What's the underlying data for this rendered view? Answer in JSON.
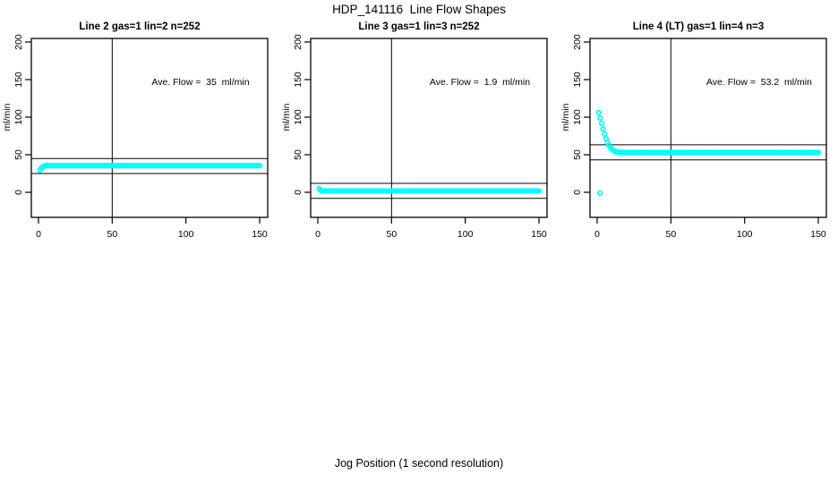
{
  "page": {
    "title": "HDP_141116  Line Flow Shapes",
    "xlabel": "Jog Position (1 second resolution)"
  },
  "colors": {
    "point": "#00ffff",
    "line": "#000000",
    "background": "#ffffff"
  },
  "chart_data": {
    "type": "scatter",
    "title": "HDP_141116  Line Flow Shapes",
    "xlabel": "Jog Position (1 second resolution)",
    "ylabel": "ml/min",
    "xlim": [
      -5,
      155
    ],
    "ylim": [
      -33,
      205
    ],
    "x_ticks": [
      0,
      50,
      100,
      150
    ],
    "y_ticks": [
      0,
      50,
      100,
      150,
      200
    ],
    "grid": false,
    "point_color": "#00ffff",
    "marker": "open-circle",
    "panels": [
      {
        "title": "Line 2 gas=1 lin=2 n=252",
        "annotation": "Ave. Flow =  35  ml/min",
        "ave_flow": 35,
        "n": 252,
        "gas": 1,
        "lin": 2,
        "ylabel": "ml/min",
        "vline_x": 50,
        "hlines": [
          45,
          25
        ],
        "points": [
          [
            1,
            29.5
          ],
          [
            2,
            32.5
          ],
          [
            3,
            34
          ],
          [
            4,
            34.8
          ]
        ],
        "steady": {
          "x_from": 5,
          "x_to": 150,
          "x_step": 1,
          "y": 35.5
        }
      },
      {
        "title": "Line 3 gas=1 lin=3 n=252",
        "annotation": "Ave. Flow =  1.9  ml/min",
        "ave_flow": 1.9,
        "n": 252,
        "gas": 1,
        "lin": 3,
        "ylabel": "ml/min",
        "vline_x": 50,
        "hlines": [
          11.9,
          -8.1
        ],
        "points": [
          [
            1,
            4.8
          ],
          [
            2,
            2.5
          ]
        ],
        "steady": {
          "x_from": 3,
          "x_to": 150,
          "x_step": 1,
          "y": 1.8
        }
      },
      {
        "title": "Line 4 (LT) gas=1 lin=4 n=3",
        "annotation": "Ave. Flow =  53.2  ml/min",
        "ave_flow": 53.2,
        "n": 3,
        "gas": 1,
        "lin": 4,
        "ylabel": "ml/min",
        "vline_x": 50,
        "hlines": [
          63.2,
          43.2
        ],
        "points": [
          [
            2,
            -1
          ],
          [
            1,
            106
          ],
          [
            2,
            99
          ],
          [
            3,
            92
          ],
          [
            4,
            84.5
          ],
          [
            5,
            77.5
          ],
          [
            6,
            71.5
          ],
          [
            7,
            66.5
          ],
          [
            8,
            62.5
          ],
          [
            9,
            59.5
          ],
          [
            10,
            57.3
          ],
          [
            11,
            55.8
          ],
          [
            12,
            54.8
          ],
          [
            13,
            54.1
          ],
          [
            14,
            53.7
          ],
          [
            15,
            53.4
          ],
          [
            16,
            53.2
          ],
          [
            17,
            53.1
          ],
          [
            18,
            53.05
          ],
          [
            19,
            53
          ],
          [
            20,
            53
          ]
        ],
        "steady": {
          "x_from": 21,
          "x_to": 150,
          "x_step": 1,
          "y": 53
        }
      }
    ]
  }
}
